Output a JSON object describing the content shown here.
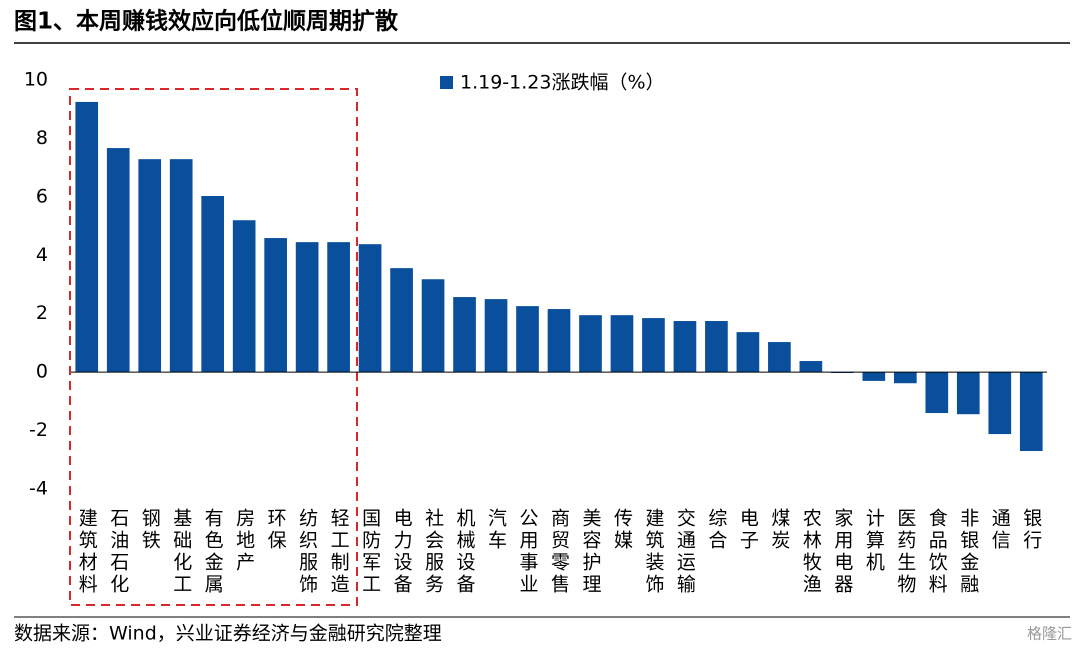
{
  "chart_data": {
    "type": "bar",
    "title": "图1、本周赚钱效应向低位顺周期扩散",
    "source": "数据来源：Wind，兴业证券经济与金融研究院整理",
    "watermark": "格隆汇",
    "categories": [
      "建筑材料",
      "石油石化",
      "钢铁",
      "基础化工",
      "有色金属",
      "房地产",
      "环保",
      "纺织服饰",
      "轻工制造",
      "国防军工",
      "电力设备",
      "社会服务",
      "机械设备",
      "汽车",
      "公用事业",
      "商贸零售",
      "美容护理",
      "传媒",
      "建筑装饰",
      "交通运输",
      "综合",
      "电子",
      "煤炭",
      "农林牧渔",
      "家用电器",
      "计算机",
      "医药生物",
      "食品饮料",
      "非银金融",
      "通信",
      "银行"
    ],
    "series": [
      {
        "name": "1.19-1.23涨跌幅（%）",
        "color": "#0a4f9b",
        "values": [
          9.25,
          7.67,
          7.29,
          7.29,
          6.03,
          5.2,
          4.59,
          4.45,
          4.45,
          4.38,
          3.56,
          3.18,
          2.57,
          2.5,
          2.26,
          2.16,
          1.95,
          1.95,
          1.85,
          1.75,
          1.75,
          1.37,
          1.03,
          0.38,
          -0.03,
          -0.3,
          -0.38,
          -1.4,
          -1.44,
          -2.12,
          -2.7
        ]
      }
    ],
    "ylim": [
      -4,
      10
    ],
    "yticks": [
      -4,
      -2,
      0,
      2,
      4,
      6,
      8,
      10
    ],
    "grid": false,
    "legend": "top"
  }
}
